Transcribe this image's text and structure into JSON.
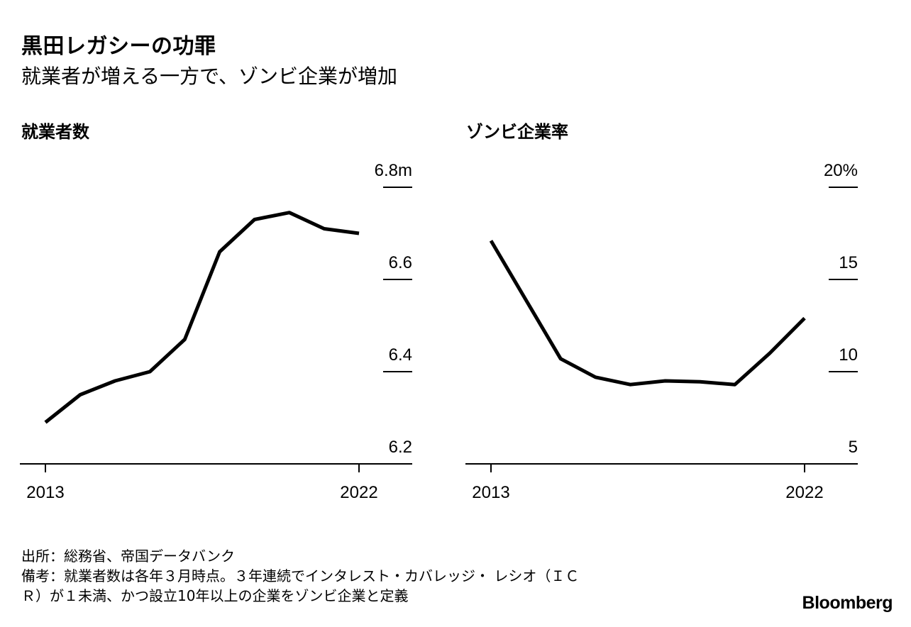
{
  "header": {
    "title": "黒田レガシーの功罪",
    "subtitle": "就業者が増える一方で、ゾンビ企業が増加"
  },
  "chart_data": [
    {
      "type": "line",
      "title": "就業者数",
      "x": [
        2013,
        2014,
        2015,
        2016,
        2017,
        2018,
        2019,
        2020,
        2021,
        2022
      ],
      "x_tick_labels": [
        "2013",
        "2022"
      ],
      "series": [
        {
          "name": "就業者数",
          "values": [
            6.29,
            6.35,
            6.38,
            6.4,
            6.47,
            6.66,
            6.73,
            6.745,
            6.71,
            6.7
          ]
        }
      ],
      "ylim": [
        6.2,
        6.8
      ],
      "y_ticks": [
        6.2,
        6.4,
        6.6,
        6.8
      ],
      "y_tick_labels": [
        "6.2",
        "6.4",
        "6.6",
        "6.8m"
      ],
      "color": "#000000"
    },
    {
      "type": "line",
      "title": "ゾンビ企業率",
      "x": [
        2013,
        2014,
        2015,
        2016,
        2017,
        2018,
        2019,
        2020,
        2021,
        2022
      ],
      "x_tick_labels": [
        "2013",
        "2022"
      ],
      "series": [
        {
          "name": "ゾンビ企業率",
          "values": [
            17.1,
            13.9,
            10.7,
            9.7,
            9.3,
            9.5,
            9.45,
            9.3,
            11.0,
            12.9
          ]
        }
      ],
      "ylim": [
        5,
        20
      ],
      "y_ticks": [
        5,
        10,
        15,
        20
      ],
      "y_tick_labels": [
        "5",
        "10",
        "15",
        "20%"
      ],
      "color": "#000000"
    }
  ],
  "footnote": {
    "source": "出所：総務省、帝国データバンク",
    "note1": "備考：就業者数は各年３月時点。３年連続でインタレスト・カバレッジ・ レシオ（ＩＣ",
    "note2": "Ｒ）が１未満、かつ設立10年以上の企業をゾンビ企業と定義"
  },
  "logo": {
    "text": "Bloomberg"
  }
}
